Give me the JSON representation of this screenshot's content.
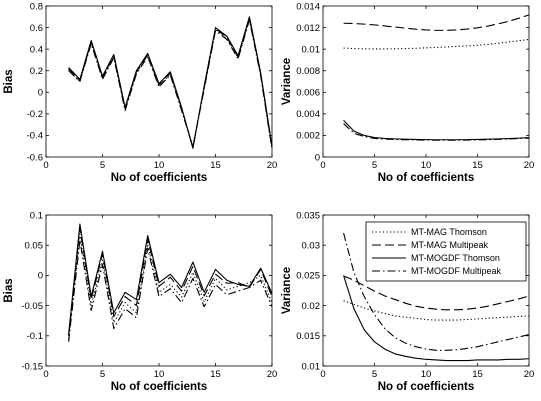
{
  "chart_data": [
    {
      "type": "line",
      "xlabel": "No of coefficients",
      "ylabel": "Bias",
      "xlim": [
        0,
        20
      ],
      "ylim": [
        -0.6,
        0.8
      ],
      "xticks": [
        0,
        5,
        10,
        15,
        20
      ],
      "yticks": [
        -0.6,
        -0.4,
        -0.2,
        0,
        0.2,
        0.4,
        0.6,
        0.8
      ],
      "ytick_labels": [
        "-0.6",
        "-0.4",
        "-0.2",
        "0",
        "0.2",
        "0.4",
        "0.6",
        "0.8"
      ],
      "x": [
        2,
        3,
        4,
        5,
        6,
        7,
        8,
        9,
        10,
        11,
        12,
        13,
        14,
        15,
        16,
        17,
        18,
        19,
        20
      ],
      "series": [
        {
          "dash": "dotted",
          "values": [
            0.21,
            0.1,
            0.46,
            0.13,
            0.33,
            -0.16,
            0.18,
            0.34,
            0.06,
            0.17,
            -0.16,
            -0.5,
            0.04,
            0.58,
            0.5,
            0.32,
            0.68,
            0.16,
            -0.52
          ]
        },
        {
          "dash": "dashed",
          "values": [
            0.22,
            0.11,
            0.47,
            0.14,
            0.34,
            -0.15,
            0.19,
            0.35,
            0.07,
            0.18,
            -0.15,
            -0.51,
            0.05,
            0.59,
            0.51,
            0.33,
            0.69,
            0.17,
            -0.51
          ]
        },
        {
          "dash": "solid",
          "values": [
            0.23,
            0.12,
            0.48,
            0.15,
            0.35,
            -0.14,
            0.2,
            0.36,
            0.08,
            0.19,
            -0.14,
            -0.52,
            0.06,
            0.6,
            0.52,
            0.34,
            0.7,
            0.18,
            -0.5
          ]
        },
        {
          "dash": "dashdot",
          "values": [
            0.2,
            0.1,
            0.45,
            0.12,
            0.32,
            -0.17,
            0.17,
            0.33,
            0.05,
            0.16,
            -0.17,
            -0.51,
            0.03,
            0.57,
            0.49,
            0.31,
            0.67,
            0.15,
            -0.53
          ]
        }
      ]
    },
    {
      "type": "line",
      "xlabel": "No of coefficients",
      "ylabel": "Variance",
      "xlim": [
        0,
        20
      ],
      "ylim": [
        0,
        0.014
      ],
      "xticks": [
        0,
        5,
        10,
        15,
        20
      ],
      "yticks": [
        0,
        0.002,
        0.004,
        0.006,
        0.008,
        0.01,
        0.012,
        0.014
      ],
      "ytick_labels": [
        "0",
        "0.002",
        "0.004",
        "0.006",
        "0.008",
        "0.01",
        "0.012",
        "0.014"
      ],
      "x": [
        2,
        3,
        4,
        5,
        6,
        7,
        8,
        9,
        10,
        11,
        12,
        13,
        14,
        15,
        16,
        17,
        18,
        19,
        20
      ],
      "series": [
        {
          "dash": "dotted",
          "values": [
            0.0101,
            0.01005,
            0.01003,
            0.01002,
            0.01002,
            0.01003,
            0.01005,
            0.01008,
            0.01012,
            0.01016,
            0.0102,
            0.01025,
            0.0103,
            0.01036,
            0.01044,
            0.01054,
            0.01066,
            0.01078,
            0.0109
          ]
        },
        {
          "dash": "dashed",
          "values": [
            0.0124,
            0.01238,
            0.01232,
            0.01225,
            0.01215,
            0.01205,
            0.01195,
            0.01185,
            0.01178,
            0.01174,
            0.01174,
            0.01178,
            0.01186,
            0.01198,
            0.01214,
            0.01234,
            0.01258,
            0.01286,
            0.01318
          ]
        },
        {
          "dash": "solid",
          "values": [
            0.0034,
            0.0024,
            0.002,
            0.0018,
            0.00172,
            0.00168,
            0.00165,
            0.00163,
            0.00161,
            0.0016,
            0.0016,
            0.0016,
            0.00161,
            0.00163,
            0.00165,
            0.00168,
            0.00171,
            0.00175,
            0.0018
          ]
        },
        {
          "dash": "dashdot",
          "values": [
            0.0031,
            0.0022,
            0.0019,
            0.00172,
            0.00166,
            0.00162,
            0.0016,
            0.00158,
            0.00157,
            0.00156,
            0.00156,
            0.00156,
            0.00157,
            0.00159,
            0.00161,
            0.00164,
            0.00167,
            0.00171,
            0.00176
          ]
        }
      ]
    },
    {
      "type": "line",
      "xlabel": "No of coefficients",
      "ylabel": "Bias",
      "xlim": [
        0,
        20
      ],
      "ylim": [
        -0.15,
        0.1
      ],
      "xticks": [
        0,
        5,
        10,
        15,
        20
      ],
      "yticks": [
        -0.15,
        -0.1,
        -0.05,
        0,
        0.05,
        0.1
      ],
      "ytick_labels": [
        "-0.15",
        "-0.1",
        "-0.05",
        "0",
        "0.05",
        "0.1"
      ],
      "x": [
        2,
        3,
        4,
        5,
        6,
        7,
        8,
        9,
        10,
        11,
        12,
        13,
        14,
        15,
        16,
        17,
        18,
        19,
        20
      ],
      "series": [
        {
          "dash": "dotted",
          "values": [
            -0.105,
            0.068,
            -0.05,
            0.025,
            -0.078,
            -0.045,
            -0.062,
            0.052,
            -0.028,
            -0.015,
            -0.036,
            0.005,
            -0.044,
            -0.005,
            -0.024,
            -0.018,
            -0.012,
            0.0,
            -0.046
          ]
        },
        {
          "dash": "dashed",
          "values": [
            -0.1,
            0.078,
            -0.04,
            0.035,
            -0.068,
            -0.035,
            -0.05,
            0.06,
            -0.018,
            -0.003,
            -0.026,
            0.015,
            -0.034,
            0.002,
            -0.013,
            -0.012,
            -0.02,
            0.01,
            -0.035
          ]
        },
        {
          "dash": "solid",
          "values": [
            -0.098,
            0.085,
            -0.035,
            0.04,
            -0.062,
            -0.028,
            -0.04,
            0.066,
            -0.012,
            0.002,
            -0.02,
            0.022,
            -0.028,
            0.01,
            -0.008,
            -0.015,
            -0.018,
            0.012,
            -0.03
          ]
        },
        {
          "dash": "dashdot",
          "values": [
            -0.11,
            0.058,
            -0.058,
            0.018,
            -0.088,
            -0.055,
            -0.07,
            0.045,
            -0.035,
            -0.022,
            -0.045,
            -0.005,
            -0.052,
            -0.015,
            -0.032,
            -0.026,
            -0.02,
            -0.008,
            -0.052
          ]
        }
      ]
    },
    {
      "type": "line",
      "xlabel": "No of coefficients",
      "ylabel": "Variance",
      "xlim": [
        0,
        20
      ],
      "ylim": [
        0.01,
        0.035
      ],
      "xticks": [
        0,
        5,
        10,
        15,
        20
      ],
      "yticks": [
        0.01,
        0.015,
        0.02,
        0.025,
        0.03,
        0.035
      ],
      "ytick_labels": [
        "0.01",
        "0.015",
        "0.02",
        "0.025",
        "0.03",
        "0.035"
      ],
      "legend": {
        "position": "top-right",
        "entries": [
          "MT-MAG Thomson",
          "MT-MAG Multipeak",
          "MT-MOGDF Thomson",
          "MT-MOGDF Multipeak"
        ]
      },
      "x": [
        2,
        3,
        4,
        5,
        6,
        7,
        8,
        9,
        10,
        11,
        12,
        13,
        14,
        15,
        16,
        17,
        18,
        19,
        20
      ],
      "series": [
        {
          "name": "MT-MAG Thomson",
          "dash": "dotted",
          "values": [
            0.0208,
            0.0202,
            0.0196,
            0.0191,
            0.0187,
            0.0183,
            0.0181,
            0.0179,
            0.0177,
            0.0176,
            0.0176,
            0.0176,
            0.0177,
            0.0178,
            0.0179,
            0.018,
            0.0181,
            0.0182,
            0.0183
          ]
        },
        {
          "name": "MT-MAG Multipeak",
          "dash": "dashed",
          "values": [
            0.0249,
            0.0242,
            0.0233,
            0.0224,
            0.0216,
            0.021,
            0.0204,
            0.0199,
            0.0196,
            0.0194,
            0.0193,
            0.0193,
            0.0194,
            0.0196,
            0.0199,
            0.0203,
            0.0207,
            0.0211,
            0.0216
          ]
        },
        {
          "name": "MT-MOGDF Thomson",
          "dash": "solid",
          "values": [
            0.025,
            0.0195,
            0.016,
            0.014,
            0.0128,
            0.012,
            0.0116,
            0.0113,
            0.0111,
            0.011,
            0.0109,
            0.0109,
            0.0109,
            0.011,
            0.011,
            0.011,
            0.0111,
            0.0111,
            0.0112
          ]
        },
        {
          "name": "MT-MOGDF Multipeak",
          "dash": "dashdot",
          "values": [
            0.032,
            0.0255,
            0.0215,
            0.0185,
            0.0162,
            0.0147,
            0.0138,
            0.0132,
            0.0128,
            0.0126,
            0.0126,
            0.0127,
            0.0129,
            0.0132,
            0.0136,
            0.014,
            0.0144,
            0.0148,
            0.0152
          ]
        }
      ]
    }
  ]
}
